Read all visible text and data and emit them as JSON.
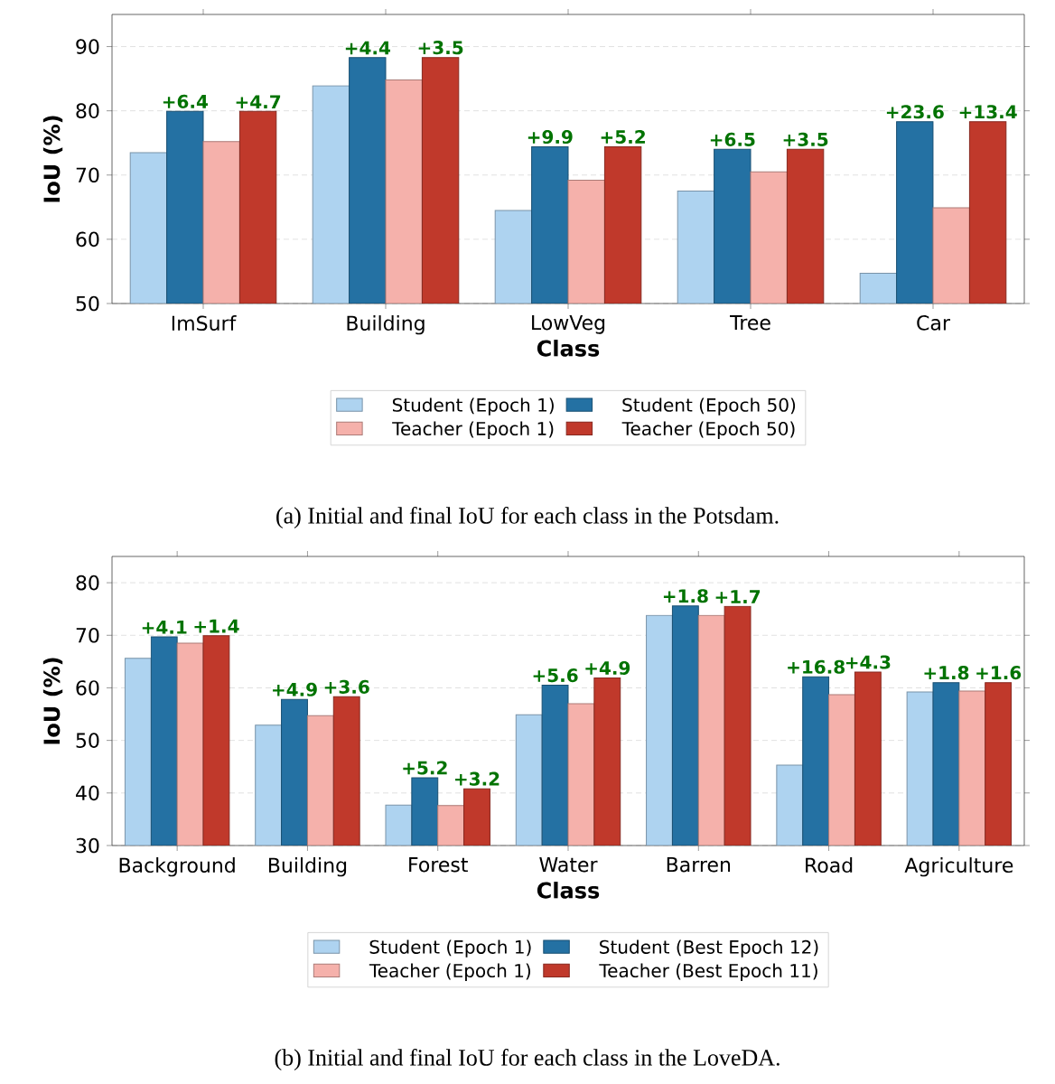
{
  "chart_data": [
    {
      "type": "bar",
      "categories": [
        "ImSurf",
        "Building",
        "LowVeg",
        "Tree",
        "Car"
      ],
      "xlabel": "Class",
      "ylabel": "IoU (%)",
      "ylim": [
        50,
        95
      ],
      "yticks": [
        50,
        60,
        70,
        80,
        90
      ],
      "grid": "y",
      "legend": "bottom",
      "series": [
        {
          "name": "Student (Epoch 1)",
          "color": "#aed3f0",
          "values": [
            73.5,
            83.9,
            64.5,
            67.5,
            54.7
          ]
        },
        {
          "name": "Student (Epoch 50)",
          "color": "#2471a3",
          "values": [
            79.9,
            88.3,
            74.4,
            74.0,
            78.3
          ]
        },
        {
          "name": "Teacher (Epoch 1)",
          "color": "#f5b1ab",
          "values": [
            75.2,
            84.8,
            69.2,
            70.5,
            64.9
          ]
        },
        {
          "name": "Teacher (Epoch 50)",
          "color": "#c0392b",
          "values": [
            79.9,
            88.3,
            74.4,
            74.0,
            78.3
          ]
        }
      ],
      "annotations": [
        "(a) Initial and final IoU for each class in the Potsdam.",
        {
          "text": "+6.4",
          "x": "ImSurf",
          "y": 79.9
        },
        {
          "text": "+4.7",
          "x": "ImSurf",
          "y": 79.9
        },
        {
          "text": "+4.4",
          "x": "Building",
          "y": 88.3
        },
        {
          "text": "+3.5",
          "x": "Building",
          "y": 88.3
        },
        {
          "text": "+9.9",
          "x": "LowVeg",
          "y": 74.4
        },
        {
          "text": "+5.2",
          "x": "LowVeg",
          "y": 74.4
        },
        {
          "text": "+6.5",
          "x": "Tree",
          "y": 74.0
        },
        {
          "text": "+3.5",
          "x": "Tree",
          "y": 74.0
        },
        {
          "text": "+23.6",
          "x": "Car",
          "y": 78.3
        },
        {
          "text": "+13.4",
          "x": "Car",
          "y": 78.3
        }
      ]
    },
    {
      "type": "bar",
      "categories": [
        "Background",
        "Building",
        "Forest",
        "Water",
        "Barren",
        "Road",
        "Agriculture"
      ],
      "xlabel": "Class",
      "ylabel": "IoU (%)",
      "ylim": [
        30,
        85
      ],
      "yticks": [
        30,
        40,
        50,
        60,
        70,
        80
      ],
      "grid": "y",
      "legend": "bottom",
      "series": [
        {
          "name": "Student (Epoch 1)",
          "color": "#aed3f0",
          "values": [
            65.6,
            52.9,
            37.7,
            54.9,
            73.8,
            45.3,
            59.2
          ]
        },
        {
          "name": "Student (Best Epoch 12)",
          "color": "#2471a3",
          "values": [
            69.7,
            57.8,
            42.9,
            60.5,
            75.6,
            62.1,
            61.0
          ]
        },
        {
          "name": "Teacher (Epoch 1)",
          "color": "#f5b1ab",
          "values": [
            68.5,
            54.7,
            37.6,
            57.0,
            73.8,
            58.7,
            59.4
          ]
        },
        {
          "name": "Teacher (Best Epoch 11)",
          "color": "#c0392b",
          "values": [
            69.9,
            58.3,
            40.8,
            61.9,
            75.5,
            63.0,
            61.0
          ]
        }
      ],
      "annotations": [
        "(b) Initial and final IoU for each class in the LoveDA.",
        {
          "text": "+4.1",
          "x": "Background",
          "y": 69.7
        },
        {
          "text": "+1.4",
          "x": "Background",
          "y": 69.9
        },
        {
          "text": "+4.9",
          "x": "Building",
          "y": 57.8
        },
        {
          "text": "+3.6",
          "x": "Building",
          "y": 58.3
        },
        {
          "text": "+5.2",
          "x": "Forest",
          "y": 42.9
        },
        {
          "text": "+3.2",
          "x": "Forest",
          "y": 40.8
        },
        {
          "text": "+5.6",
          "x": "Water",
          "y": 60.5
        },
        {
          "text": "+4.9",
          "x": "Water",
          "y": 61.9
        },
        {
          "text": "+1.8",
          "x": "Barren",
          "y": 75.6
        },
        {
          "text": "+1.7",
          "x": "Barren",
          "y": 75.5
        },
        {
          "text": "+16.8",
          "x": "Road",
          "y": 62.1
        },
        {
          "text": "+4.3",
          "x": "Road",
          "y": 63.0
        },
        {
          "text": "+1.8",
          "x": "Agriculture",
          "y": 61.0
        },
        {
          "text": "+1.6",
          "x": "Agriculture",
          "y": 61.0
        }
      ]
    }
  ]
}
